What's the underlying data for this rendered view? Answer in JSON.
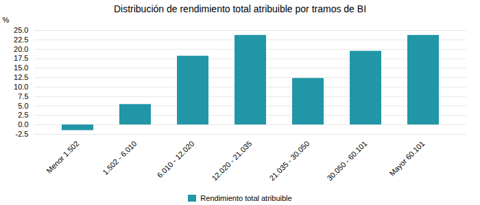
{
  "chart_data": {
    "type": "bar",
    "title": "Distribución de rendimiento total atribuible por tramos de BI",
    "ylabel": "%",
    "categories": [
      "Menor 1.502",
      "1.502 - 6.010",
      "6.010 - 12.020",
      "12.020 - 21.035",
      "21.035 - 30.050",
      "30.050 - 60.101",
      "Mayor 60.101"
    ],
    "series": [
      {
        "name": "Rendimiento total atribuible",
        "color": "#2196a6",
        "values": [
          -1.5,
          5.4,
          18.2,
          23.7,
          12.3,
          19.5,
          23.7
        ]
      }
    ],
    "ylim": [
      -2.5,
      25.0
    ],
    "yticks": [
      -2.5,
      {
        "value": 0.0,
        "label": "0.0"
      },
      2.5,
      {
        "value": 5.0,
        "label": "5.0"
      },
      7.5,
      {
        "value": 10.0,
        "label": "10.0"
      },
      12.5,
      {
        "value": 15.0,
        "label": "15.0"
      },
      17.5,
      {
        "value": 20.0,
        "label": "20.0"
      },
      22.5,
      {
        "value": 25.0,
        "label": "25.0"
      }
    ],
    "grid": true,
    "legend": "bottom"
  }
}
